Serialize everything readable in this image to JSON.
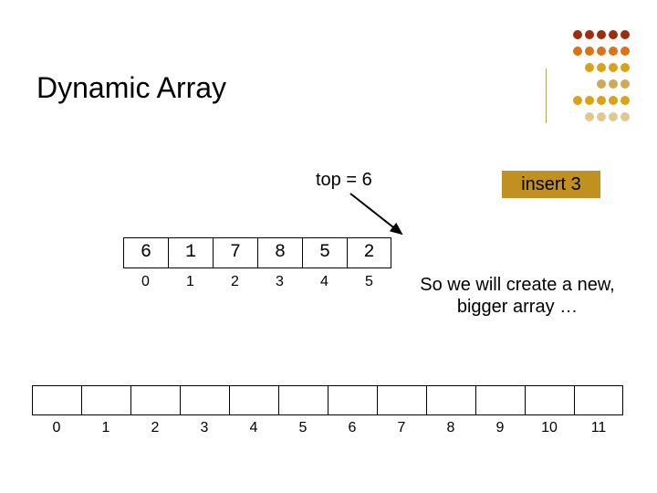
{
  "title": "Dynamic Array",
  "top_label": "top = 6",
  "insert_label": "insert 3",
  "caption": "So we will create a new, bigger array …",
  "small_array": {
    "values": [
      "6",
      "1",
      "7",
      "8",
      "5",
      "2"
    ],
    "indices": [
      "0",
      "1",
      "2",
      "3",
      "4",
      "5"
    ]
  },
  "big_array": {
    "cell_count": 12,
    "indices": [
      "0",
      "1",
      "2",
      "3",
      "4",
      "5",
      "6",
      "7",
      "8",
      "9",
      "10",
      "11"
    ]
  },
  "colors": {
    "insert_bg": "#c09020",
    "dot_dark": "#9b2e0e",
    "dot_orange": "#d97218",
    "dot_gold": "#d9a218",
    "dot_tan": "#cfa858",
    "dot_light": "#e0c890"
  },
  "deco_rows": [
    [
      "dot_dark",
      "dot_dark",
      "dot_dark",
      "dot_dark",
      "dot_dark"
    ],
    [
      "dot_orange",
      "dot_orange",
      "dot_orange",
      "dot_orange",
      "dot_orange"
    ],
    [
      "dot_gold",
      "dot_gold",
      "dot_gold",
      "dot_gold"
    ],
    [
      "dot_tan",
      "dot_tan",
      "dot_tan"
    ],
    [
      "dot_gold",
      "dot_gold",
      "dot_gold",
      "dot_gold",
      "dot_gold"
    ],
    [
      "dot_light",
      "dot_light",
      "dot_light",
      "dot_light"
    ]
  ]
}
